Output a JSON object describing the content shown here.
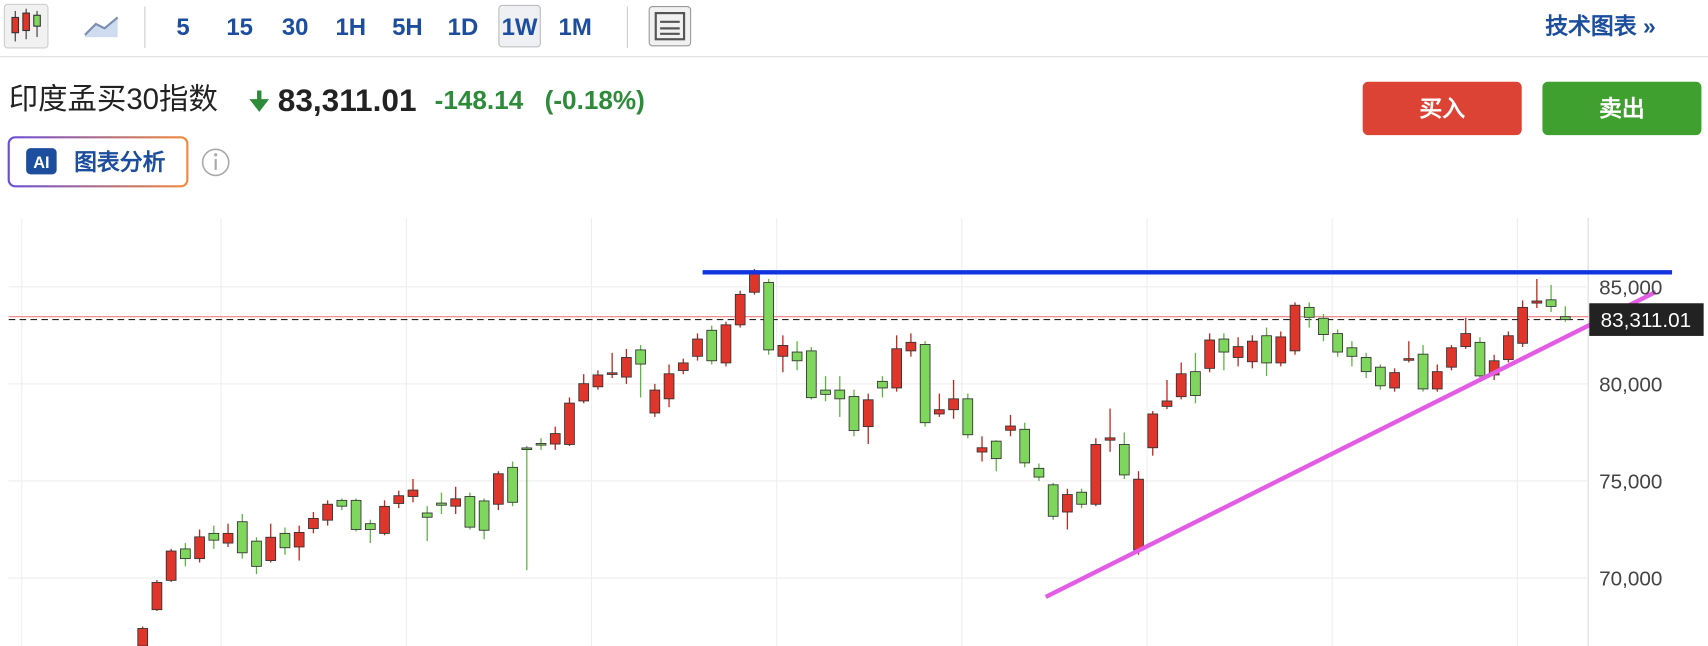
{
  "toolbar": {
    "timeframes": [
      "5",
      "15",
      "30",
      "1H",
      "5H",
      "1D",
      "1W",
      "1M"
    ],
    "selected": 6,
    "tech_chart": "技术图表 »"
  },
  "header": {
    "name": "印度孟买30指数",
    "price": "83,311.01",
    "change": "-148.14",
    "change_pct": "(-0.18%)",
    "buy": "买入",
    "sell": "卖出",
    "ai_badge": "AI",
    "ai_label": "图表分析"
  },
  "chart_data": {
    "type": "candlestick",
    "up_color": "#e0352b",
    "down_color": "#7fd65c",
    "ylim": [
      66500,
      88550
    ],
    "yticks": [
      {
        "value": 70000,
        "label": "70,000"
      },
      {
        "value": 75000,
        "label": "75,000"
      },
      {
        "value": 80000,
        "label": "80,000"
      },
      {
        "value": 85000,
        "label": "85,000"
      }
    ],
    "grid": true,
    "current_price": {
      "value": 83311.01,
      "label": "83,311.01"
    },
    "ohlc": [
      [
        66500,
        67500,
        66000,
        67400
      ],
      [
        68370,
        69900,
        68300,
        69770
      ],
      [
        69880,
        71500,
        69800,
        71390
      ],
      [
        71500,
        71800,
        70600,
        71000
      ],
      [
        71000,
        72500,
        70800,
        72120
      ],
      [
        72300,
        72700,
        71500,
        71950
      ],
      [
        71800,
        72800,
        71600,
        72300
      ],
      [
        72900,
        73300,
        71000,
        71300
      ],
      [
        71900,
        72100,
        70200,
        70600
      ],
      [
        70900,
        72800,
        70800,
        72100
      ],
      [
        72300,
        72600,
        71200,
        71560
      ],
      [
        71600,
        72700,
        70900,
        72350
      ],
      [
        72550,
        73400,
        72300,
        73070
      ],
      [
        72980,
        74000,
        72700,
        73800
      ],
      [
        74000,
        74100,
        73500,
        73700
      ],
      [
        74000,
        74100,
        72400,
        72500
      ],
      [
        72800,
        73000,
        71800,
        72500
      ],
      [
        72300,
        74000,
        72200,
        73690
      ],
      [
        73840,
        74500,
        73600,
        74240
      ],
      [
        74200,
        75100,
        73900,
        74530
      ],
      [
        73350,
        73700,
        71900,
        73130
      ],
      [
        73860,
        74400,
        73300,
        73750
      ],
      [
        73700,
        74700,
        73300,
        74080
      ],
      [
        74200,
        74400,
        72500,
        72620
      ],
      [
        73970,
        74100,
        72000,
        72460
      ],
      [
        73800,
        75500,
        73500,
        75370
      ],
      [
        75700,
        76000,
        73700,
        73900
      ],
      [
        76700,
        76800,
        70400,
        76650
      ],
      [
        76930,
        77200,
        76600,
        76900
      ],
      [
        76900,
        77800,
        76600,
        77440
      ],
      [
        76880,
        79300,
        76800,
        79010
      ],
      [
        79120,
        80500,
        79000,
        80010
      ],
      [
        79850,
        80700,
        79700,
        80460
      ],
      [
        80520,
        81600,
        80300,
        80570
      ],
      [
        80350,
        81800,
        80000,
        81360
      ],
      [
        81750,
        82000,
        79300,
        81020
      ],
      [
        78500,
        80000,
        78300,
        79680
      ],
      [
        79230,
        81000,
        78800,
        80520
      ],
      [
        80690,
        81300,
        80500,
        81080
      ],
      [
        81420,
        82600,
        81200,
        82310
      ],
      [
        82760,
        83000,
        81000,
        81190
      ],
      [
        81080,
        83200,
        80900,
        83040
      ],
      [
        83040,
        84800,
        82900,
        84610
      ],
      [
        84720,
        85920,
        84600,
        85670
      ],
      [
        85220,
        85400,
        81500,
        81750
      ],
      [
        81420,
        82500,
        80600,
        81980
      ],
      [
        81640,
        82200,
        80700,
        81190
      ],
      [
        81700,
        81900,
        79200,
        79290
      ],
      [
        79680,
        80400,
        79100,
        79460
      ],
      [
        79680,
        80400,
        78300,
        79230
      ],
      [
        79350,
        79700,
        77300,
        77600
      ],
      [
        77800,
        79500,
        76900,
        79180
      ],
      [
        80130,
        80400,
        79300,
        79790
      ],
      [
        79790,
        82500,
        79600,
        81810
      ],
      [
        81700,
        82600,
        81400,
        82140
      ],
      [
        82030,
        82200,
        77800,
        78000
      ],
      [
        78450,
        79500,
        78300,
        78670
      ],
      [
        78670,
        80200,
        78200,
        79230
      ],
      [
        79230,
        79500,
        77200,
        77380
      ],
      [
        76490,
        77300,
        76000,
        76710
      ],
      [
        77050,
        77100,
        75500,
        76150
      ],
      [
        77610,
        78400,
        77300,
        77830
      ],
      [
        77660,
        78000,
        75700,
        75930
      ],
      [
        75650,
        75900,
        75000,
        75200
      ],
      [
        74800,
        74900,
        73000,
        73180
      ],
      [
        73400,
        74600,
        72500,
        74300
      ],
      [
        74420,
        74600,
        73600,
        73800
      ],
      [
        73800,
        77200,
        73700,
        76880
      ],
      [
        77100,
        78730,
        76500,
        77220
      ],
      [
        76880,
        77500,
        75100,
        75310
      ],
      [
        71450,
        75500,
        71200,
        75090
      ],
      [
        76710,
        78600,
        76300,
        78450
      ],
      [
        78840,
        80200,
        78700,
        79120
      ],
      [
        79340,
        81100,
        79200,
        80520
      ],
      [
        80630,
        81600,
        79000,
        79400
      ],
      [
        80800,
        82600,
        80600,
        82260
      ],
      [
        82310,
        82600,
        80700,
        81640
      ],
      [
        81360,
        82400,
        80900,
        81920
      ],
      [
        81140,
        82500,
        80800,
        82200
      ],
      [
        82480,
        82900,
        80400,
        81080
      ],
      [
        81080,
        82700,
        80900,
        82420
      ],
      [
        81700,
        84200,
        81500,
        84050
      ],
      [
        83940,
        84200,
        82900,
        83430
      ],
      [
        83380,
        83600,
        82200,
        82540
      ],
      [
        82590,
        82800,
        81400,
        81640
      ],
      [
        81860,
        82200,
        80900,
        81420
      ],
      [
        81360,
        81600,
        80300,
        80630
      ],
      [
        80860,
        81000,
        79700,
        79900
      ],
      [
        79790,
        80800,
        79600,
        80580
      ],
      [
        81250,
        82200,
        81100,
        81300
      ],
      [
        81530,
        82000,
        79600,
        79740
      ],
      [
        79740,
        81000,
        79600,
        80630
      ],
      [
        80860,
        82000,
        80700,
        81860
      ],
      [
        81920,
        83400,
        81800,
        82590
      ],
      [
        82140,
        82400,
        80200,
        80410
      ],
      [
        80460,
        81500,
        80200,
        81190
      ],
      [
        81250,
        82700,
        81100,
        82480
      ],
      [
        82090,
        84300,
        81900,
        83940
      ],
      [
        84160,
        85400,
        83900,
        84270
      ],
      [
        84330,
        85100,
        83700,
        83990
      ],
      [
        83460,
        84000,
        83200,
        83311.01
      ]
    ]
  }
}
